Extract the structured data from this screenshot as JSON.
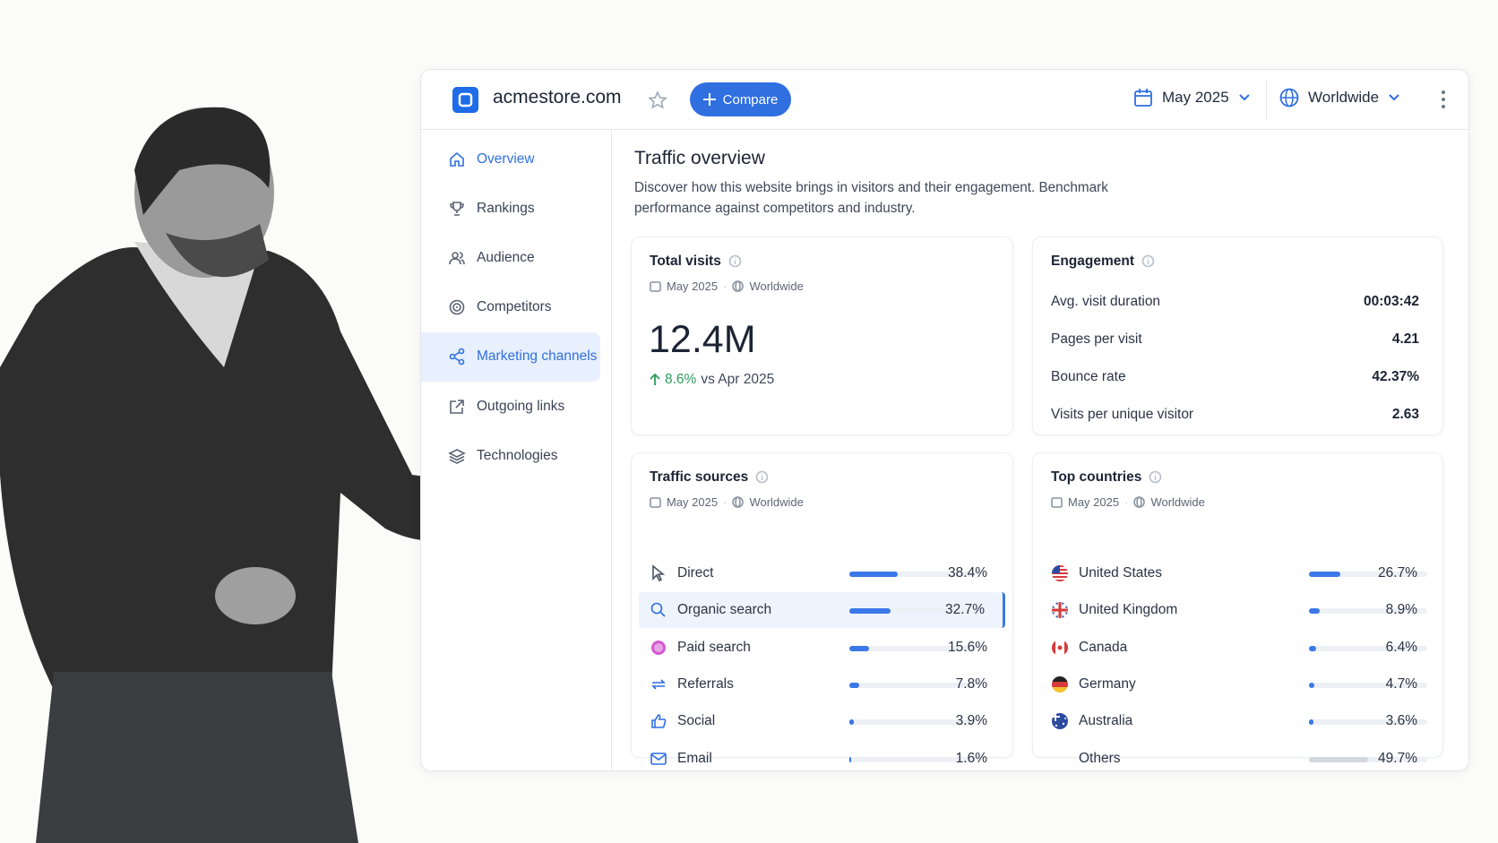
{
  "header": {
    "site": "acmestore.com",
    "compare": "Compare",
    "date": "May 2025",
    "region": "Worldwide"
  },
  "nav": [
    "Overview",
    "Rankings",
    "Audience",
    "Competitors",
    "Marketing channels",
    "Outgoing links",
    "Technologies"
  ],
  "overview": {
    "title": "Traffic overview",
    "description": "Discover how this website brings in visitors and their engagement. Benchmark performance against competitors and industry."
  },
  "total_visits": {
    "title": "Total visits",
    "date": "May 2025",
    "region": "Worldwide",
    "value": "12.4M",
    "change": "8.6%",
    "comparison": "vs Apr 2025"
  },
  "engagement": {
    "title": "Engagement",
    "rows": [
      {
        "label": "Avg. visit duration",
        "value": "00:03:42"
      },
      {
        "label": "Pages per visit",
        "value": "4.21"
      },
      {
        "label": "Bounce rate",
        "value": "42.37%"
      },
      {
        "label": "Visits per unique visitor",
        "value": "2.63"
      }
    ]
  },
  "traffic_sources": {
    "title": "Traffic sources",
    "date": "May 2025",
    "region": "Worldwide",
    "rows": [
      {
        "name": "Direct",
        "value": 38.4,
        "label": "38.4%"
      },
      {
        "name": "Organic search",
        "value": 32.7,
        "label": "32.7%"
      },
      {
        "name": "Paid search",
        "value": 15.6,
        "label": "15.6%"
      },
      {
        "name": "Referrals",
        "value": 7.8,
        "label": "7.8%"
      },
      {
        "name": "Social",
        "value": 3.9,
        "label": "3.9%"
      },
      {
        "name": "Email",
        "value": 1.6,
        "label": "1.6%"
      }
    ]
  },
  "top_countries": {
    "title": "Top countries",
    "date": "May 2025",
    "region": "Worldwide",
    "rows": [
      {
        "name": "United States",
        "value": 26.7,
        "label": "26.7%"
      },
      {
        "name": "United Kingdom",
        "value": 8.9,
        "label": "8.9%"
      },
      {
        "name": "Canada",
        "value": 6.4,
        "label": "6.4%"
      },
      {
        "name": "Germany",
        "value": 4.7,
        "label": "4.7%"
      },
      {
        "name": "Australia",
        "value": 3.6,
        "label": "3.6%"
      },
      {
        "name": "Others",
        "value": 49.7,
        "label": "49.7%"
      }
    ]
  }
}
